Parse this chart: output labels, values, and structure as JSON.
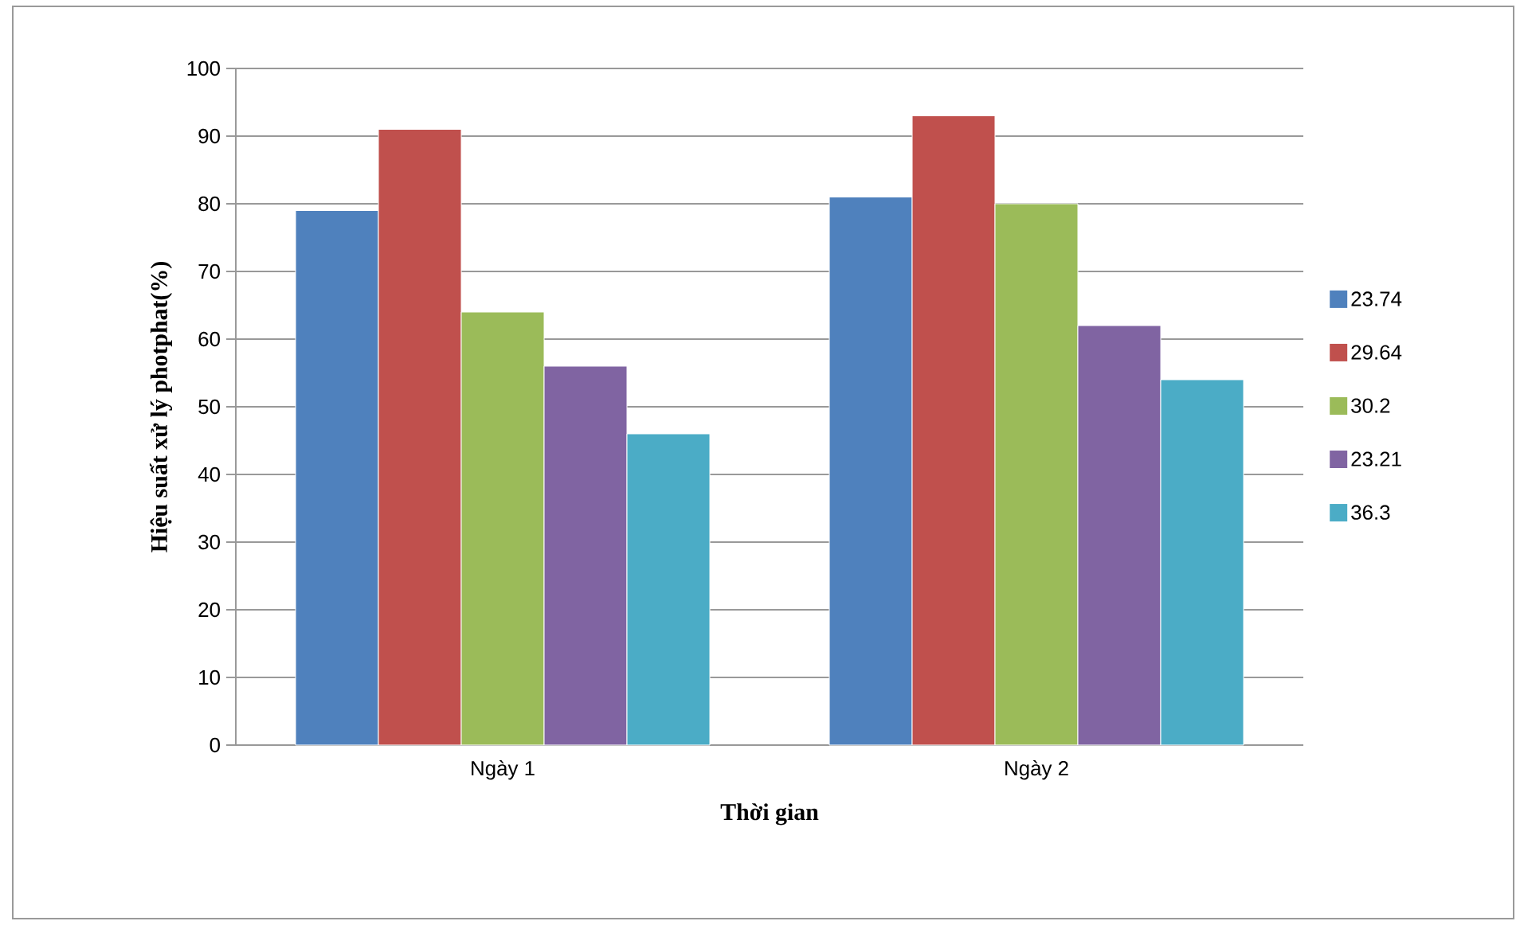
{
  "chart_data": {
    "type": "bar",
    "xlabel": "Thời gian",
    "ylabel": "Hiệu suất xử lý photphat(%)",
    "categories": [
      "Ngày 1",
      "Ngày 2"
    ],
    "series": [
      {
        "name": "23.74",
        "color": "#4f81bd",
        "values": [
          79,
          81
        ]
      },
      {
        "name": "29.64",
        "color": "#c0504d",
        "values": [
          91,
          93
        ]
      },
      {
        "name": "30.2",
        "color": "#9bbb59",
        "values": [
          64,
          80
        ]
      },
      {
        "name": "23.21",
        "color": "#8064a2",
        "values": [
          56,
          62
        ]
      },
      {
        "name": "36.3",
        "color": "#4bacc6",
        "values": [
          46,
          54
        ]
      }
    ],
    "ylim": [
      0,
      100
    ],
    "yticks": [
      0,
      10,
      20,
      30,
      40,
      50,
      60,
      70,
      80,
      90,
      100
    ],
    "grid": "y",
    "legend": "right"
  }
}
